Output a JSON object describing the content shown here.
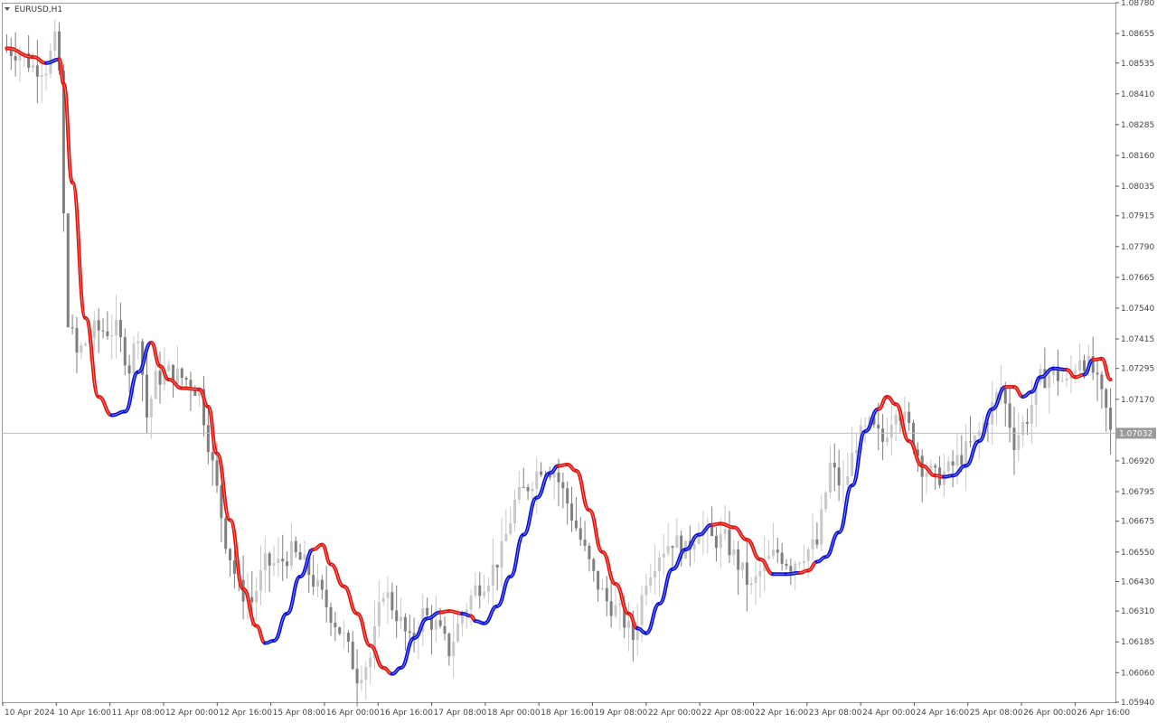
{
  "window": {
    "title": "EURUSD,H1",
    "menu_icon": "triangle-down-icon"
  },
  "colors": {
    "background": "#ffffff",
    "frame": "#9a9a9a",
    "bull_candle": "#c8c8c8",
    "bear_candle": "#7f7f7f",
    "indicator_up": "#0a12d8",
    "indicator_down": "#e3120b",
    "current_price_line": "#c0c0c0",
    "current_price_tag": "#9a9a9a"
  },
  "chart_data": {
    "type": "candlestick",
    "symbol": "EURUSD",
    "timeframe": "H1",
    "ylim": [
      1.0594,
      1.0878
    ],
    "y_ticks": [
      "1.08780",
      "1.08655",
      "1.08535",
      "1.08410",
      "1.08285",
      "1.08160",
      "1.08035",
      "1.07915",
      "1.07790",
      "1.07665",
      "1.07540",
      "1.07415",
      "1.07295",
      "1.07170",
      "1.06920",
      "1.06795",
      "1.06675",
      "1.06550",
      "1.06430",
      "1.06310",
      "1.06185",
      "1.06060",
      "1.05940"
    ],
    "current_price": "1.07032",
    "x_ticks": [
      "10 Apr 2024",
      "10 Apr 16:00",
      "11 Apr 08:00",
      "12 Apr 00:00",
      "12 Apr 16:00",
      "15 Apr 08:00",
      "16 Apr 00:00",
      "16 Apr 16:00",
      "17 Apr 08:00",
      "18 Apr 00:00",
      "18 Apr 16:00",
      "19 Apr 08:00",
      "22 Apr 00:00",
      "22 Apr 08:00",
      "22 Apr 16:00",
      "23 Apr 08:00",
      "24 Apr 00:00",
      "24 Apr 16:00",
      "25 Apr 08:00",
      "26 Apr 00:00",
      "26 Apr 16:00"
    ],
    "price_path": [
      [
        0,
        1.0859
      ],
      [
        3,
        1.0858
      ],
      [
        6,
        1.0852
      ],
      [
        9,
        1.0852
      ],
      [
        11,
        1.0862
      ],
      [
        12,
        1.085
      ],
      [
        13,
        1.079
      ],
      [
        14,
        1.075
      ],
      [
        16,
        1.0735
      ],
      [
        20,
        1.0745
      ],
      [
        25,
        1.0745
      ],
      [
        28,
        1.073
      ],
      [
        30,
        1.0745
      ],
      [
        32,
        1.071
      ],
      [
        34,
        1.0725
      ],
      [
        37,
        1.0728
      ],
      [
        41,
        1.0725
      ],
      [
        44,
        1.072
      ],
      [
        47,
        1.069
      ],
      [
        50,
        1.066
      ],
      [
        53,
        1.064
      ],
      [
        56,
        1.0635
      ],
      [
        59,
        1.065
      ],
      [
        62,
        1.065
      ],
      [
        65,
        1.0655
      ],
      [
        68,
        1.065
      ],
      [
        71,
        1.064
      ],
      [
        74,
        1.063
      ],
      [
        77,
        1.062
      ],
      [
        80,
        1.0605
      ],
      [
        83,
        1.0612
      ],
      [
        86,
        1.064
      ],
      [
        89,
        1.063
      ],
      [
        92,
        1.0618
      ],
      [
        95,
        1.063
      ],
      [
        98,
        1.0625
      ],
      [
        101,
        1.0615
      ],
      [
        104,
        1.063
      ],
      [
        107,
        1.064
      ],
      [
        110,
        1.0645
      ],
      [
        113,
        1.0655
      ],
      [
        116,
        1.0675
      ],
      [
        119,
        1.0682
      ],
      [
        122,
        1.069
      ],
      [
        125,
        1.0688
      ],
      [
        128,
        1.0675
      ],
      [
        131,
        1.066
      ],
      [
        134,
        1.0645
      ],
      [
        137,
        1.0635
      ],
      [
        140,
        1.063
      ],
      [
        143,
        1.062
      ],
      [
        146,
        1.0645
      ],
      [
        149,
        1.0655
      ],
      [
        152,
        1.066
      ],
      [
        155,
        1.0655
      ],
      [
        158,
        1.0665
      ],
      [
        161,
        1.066
      ],
      [
        164,
        1.066
      ],
      [
        167,
        1.065
      ],
      [
        170,
        1.064
      ],
      [
        173,
        1.065
      ],
      [
        176,
        1.0655
      ],
      [
        179,
        1.065
      ],
      [
        182,
        1.0655
      ],
      [
        185,
        1.0658
      ],
      [
        188,
        1.069
      ],
      [
        191,
        1.068
      ],
      [
        194,
        1.07
      ],
      [
        197,
        1.0706
      ],
      [
        200,
        1.07
      ],
      [
        203,
        1.0715
      ],
      [
        206,
        1.0705
      ],
      [
        209,
        1.069
      ],
      [
        212,
        1.0685
      ],
      [
        215,
        1.0688
      ],
      [
        218,
        1.0694
      ],
      [
        221,
        1.07
      ],
      [
        224,
        1.071
      ],
      [
        227,
        1.0722
      ],
      [
        230,
        1.07
      ],
      [
        233,
        1.071
      ],
      [
        236,
        1.0725
      ],
      [
        239,
        1.0728
      ],
      [
        242,
        1.0723
      ],
      [
        245,
        1.0735
      ],
      [
        248,
        1.0728
      ],
      [
        251,
        1.0712
      ],
      [
        252,
        1.0703
      ]
    ],
    "indicator_path": [
      [
        0,
        1.08595,
        "down"
      ],
      [
        6,
        1.0856,
        "down"
      ],
      [
        9,
        1.08535,
        "down"
      ],
      [
        12,
        1.0855,
        "up"
      ],
      [
        13,
        1.0845,
        "down"
      ],
      [
        15,
        1.0805,
        "down"
      ],
      [
        18,
        1.075,
        "down"
      ],
      [
        21,
        1.0718,
        "down"
      ],
      [
        24,
        1.07105,
        "down"
      ],
      [
        27,
        1.0712,
        "up"
      ],
      [
        30,
        1.0728,
        "up"
      ],
      [
        33,
        1.074,
        "up"
      ],
      [
        35,
        1.07305,
        "down"
      ],
      [
        37,
        1.0725,
        "down"
      ],
      [
        40,
        1.07215,
        "down"
      ],
      [
        44,
        1.0721,
        "down"
      ],
      [
        46,
        1.0714,
        "down"
      ],
      [
        48,
        1.0695,
        "down"
      ],
      [
        51,
        1.0668,
        "down"
      ],
      [
        54,
        1.064,
        "down"
      ],
      [
        57,
        1.0625,
        "down"
      ],
      [
        59,
        1.0618,
        "down"
      ],
      [
        61,
        1.0619,
        "up"
      ],
      [
        64,
        1.063,
        "up"
      ],
      [
        67,
        1.0645,
        "up"
      ],
      [
        70,
        1.0656,
        "up"
      ],
      [
        72,
        1.0658,
        "down"
      ],
      [
        74,
        1.065,
        "down"
      ],
      [
        77,
        1.0641,
        "down"
      ],
      [
        80,
        1.063,
        "down"
      ],
      [
        83,
        1.0617,
        "down"
      ],
      [
        86,
        1.0608,
        "down"
      ],
      [
        88,
        1.06055,
        "down"
      ],
      [
        90,
        1.0608,
        "up"
      ],
      [
        93,
        1.062,
        "up"
      ],
      [
        96,
        1.0628,
        "up"
      ],
      [
        99,
        1.06305,
        "up"
      ],
      [
        101,
        1.0631,
        "down"
      ],
      [
        104,
        1.063,
        "down"
      ],
      [
        106,
        1.0629,
        "up"
      ],
      [
        107,
        1.0627,
        "down"
      ],
      [
        109,
        1.0626,
        "up"
      ],
      [
        112,
        1.0633,
        "up"
      ],
      [
        115,
        1.0645,
        "up"
      ],
      [
        118,
        1.0662,
        "up"
      ],
      [
        121,
        1.0677,
        "up"
      ],
      [
        124,
        1.0687,
        "up"
      ],
      [
        126,
        1.069,
        "up"
      ],
      [
        128,
        1.06905,
        "down"
      ],
      [
        130,
        1.0688,
        "down"
      ],
      [
        133,
        1.0672,
        "down"
      ],
      [
        136,
        1.0655,
        "down"
      ],
      [
        139,
        1.0642,
        "down"
      ],
      [
        142,
        1.063,
        "down"
      ],
      [
        144,
        1.0624,
        "down"
      ],
      [
        146,
        1.0622,
        "up"
      ],
      [
        149,
        1.0634,
        "up"
      ],
      [
        152,
        1.0648,
        "up"
      ],
      [
        155,
        1.0656,
        "up"
      ],
      [
        158,
        1.0662,
        "up"
      ],
      [
        161,
        1.0666,
        "up"
      ],
      [
        163,
        1.06665,
        "down"
      ],
      [
        166,
        1.0665,
        "down"
      ],
      [
        169,
        1.066,
        "down"
      ],
      [
        172,
        1.0652,
        "down"
      ],
      [
        175,
        1.0646,
        "down"
      ],
      [
        178,
        1.0646,
        "up"
      ],
      [
        181,
        1.06465,
        "up"
      ],
      [
        183,
        1.06475,
        "down"
      ],
      [
        185,
        1.0651,
        "down"
      ],
      [
        187,
        1.0653,
        "up"
      ],
      [
        190,
        1.0663,
        "up"
      ],
      [
        193,
        1.0682,
        "up"
      ],
      [
        196,
        1.0704,
        "up"
      ],
      [
        199,
        1.0713,
        "up"
      ],
      [
        201,
        1.0718,
        "down"
      ],
      [
        203,
        1.0715,
        "down"
      ],
      [
        206,
        1.07,
        "down"
      ],
      [
        209,
        1.069,
        "down"
      ],
      [
        212,
        1.0686,
        "down"
      ],
      [
        214,
        1.06855,
        "down"
      ],
      [
        216,
        1.0686,
        "up"
      ],
      [
        219,
        1.069,
        "up"
      ],
      [
        222,
        1.07,
        "up"
      ],
      [
        225,
        1.0713,
        "up"
      ],
      [
        228,
        1.0722,
        "up"
      ],
      [
        230,
        1.0722,
        "down"
      ],
      [
        232,
        1.0718,
        "down"
      ],
      [
        234,
        1.072,
        "up"
      ],
      [
        236,
        1.0726,
        "up"
      ],
      [
        239,
        1.07295,
        "up"
      ],
      [
        242,
        1.0729,
        "up"
      ],
      [
        244,
        1.0726,
        "down"
      ],
      [
        246,
        1.0727,
        "down"
      ],
      [
        248,
        1.0733,
        "up"
      ],
      [
        250,
        1.07335,
        "down"
      ],
      [
        252,
        1.0725,
        "down"
      ]
    ]
  }
}
